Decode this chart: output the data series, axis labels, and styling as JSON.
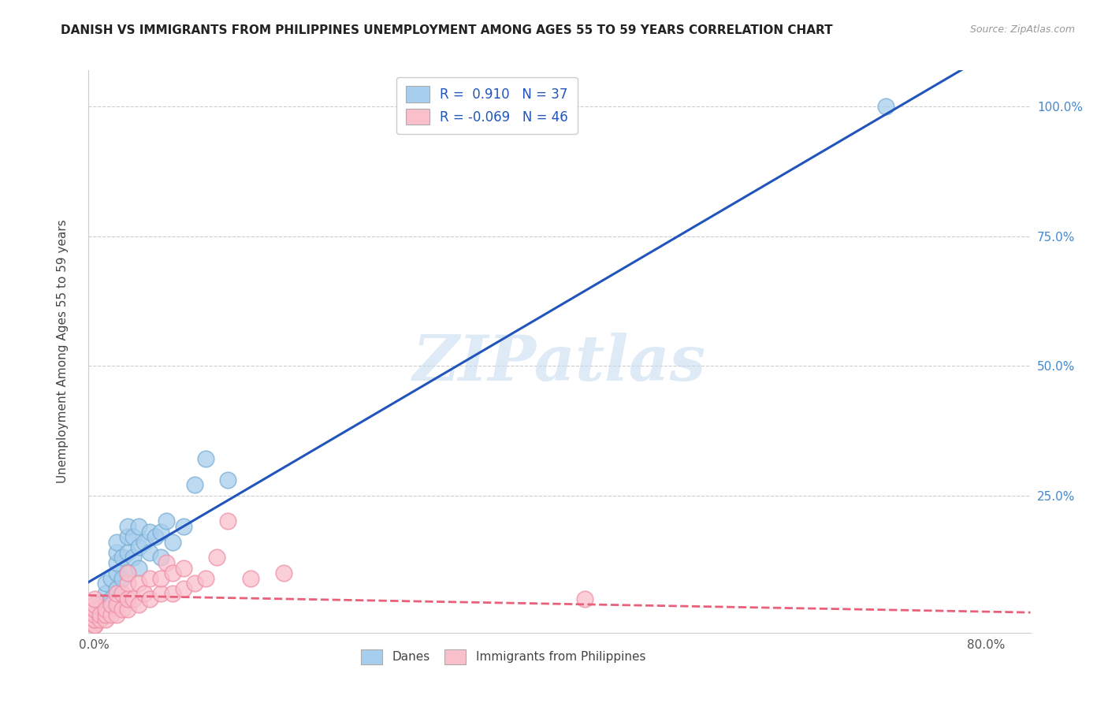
{
  "title": "DANISH VS IMMIGRANTS FROM PHILIPPINES UNEMPLOYMENT AMONG AGES 55 TO 59 YEARS CORRELATION CHART",
  "source": "Source: ZipAtlas.com",
  "ylabel": "Unemployment Among Ages 55 to 59 years",
  "xlim": [
    -0.005,
    0.84
  ],
  "ylim": [
    -0.015,
    1.07
  ],
  "danes_R": 0.91,
  "danes_N": 37,
  "philippines_R": -0.069,
  "philippines_N": 46,
  "danes_color": "#A8CEED",
  "danes_edge_color": "#7AAFD4",
  "philippines_color": "#F9C0CC",
  "philippines_edge_color": "#F090A8",
  "danes_line_color": "#2255BB",
  "philippines_line_color": "#E8607A",
  "watermark": "ZIPatlas",
  "legend_label_danes": "Danes",
  "legend_label_phil": "Immigrants from Philippines",
  "danes_x": [
    0.0,
    0.0,
    0.005,
    0.01,
    0.01,
    0.01,
    0.015,
    0.015,
    0.02,
    0.02,
    0.02,
    0.02,
    0.02,
    0.025,
    0.025,
    0.03,
    0.03,
    0.03,
    0.03,
    0.035,
    0.035,
    0.04,
    0.04,
    0.04,
    0.045,
    0.05,
    0.05,
    0.055,
    0.06,
    0.06,
    0.065,
    0.07,
    0.08,
    0.09,
    0.1,
    0.12,
    0.71
  ],
  "danes_y": [
    0.01,
    0.02,
    0.04,
    0.03,
    0.06,
    0.08,
    0.05,
    0.09,
    0.07,
    0.1,
    0.12,
    0.14,
    0.16,
    0.09,
    0.13,
    0.1,
    0.14,
    0.17,
    0.19,
    0.13,
    0.17,
    0.11,
    0.15,
    0.19,
    0.16,
    0.14,
    0.18,
    0.17,
    0.13,
    0.18,
    0.2,
    0.16,
    0.19,
    0.27,
    0.32,
    0.28,
    1.0
  ],
  "phil_x": [
    0.0,
    0.0,
    0.0,
    0.0,
    0.0,
    0.0,
    0.0,
    0.0,
    0.0,
    0.0,
    0.005,
    0.005,
    0.01,
    0.01,
    0.01,
    0.015,
    0.015,
    0.02,
    0.02,
    0.02,
    0.025,
    0.025,
    0.03,
    0.03,
    0.03,
    0.03,
    0.035,
    0.04,
    0.04,
    0.045,
    0.05,
    0.05,
    0.06,
    0.06,
    0.065,
    0.07,
    0.07,
    0.08,
    0.08,
    0.09,
    0.1,
    0.11,
    0.12,
    0.14,
    0.17,
    0.44
  ],
  "phil_y": [
    0.0,
    0.0,
    0.0,
    0.01,
    0.01,
    0.02,
    0.03,
    0.03,
    0.04,
    0.05,
    0.01,
    0.02,
    0.01,
    0.02,
    0.03,
    0.02,
    0.04,
    0.02,
    0.04,
    0.06,
    0.03,
    0.06,
    0.03,
    0.05,
    0.08,
    0.1,
    0.05,
    0.04,
    0.08,
    0.06,
    0.05,
    0.09,
    0.06,
    0.09,
    0.12,
    0.06,
    0.1,
    0.07,
    0.11,
    0.08,
    0.09,
    0.13,
    0.2,
    0.09,
    0.1,
    0.05
  ]
}
